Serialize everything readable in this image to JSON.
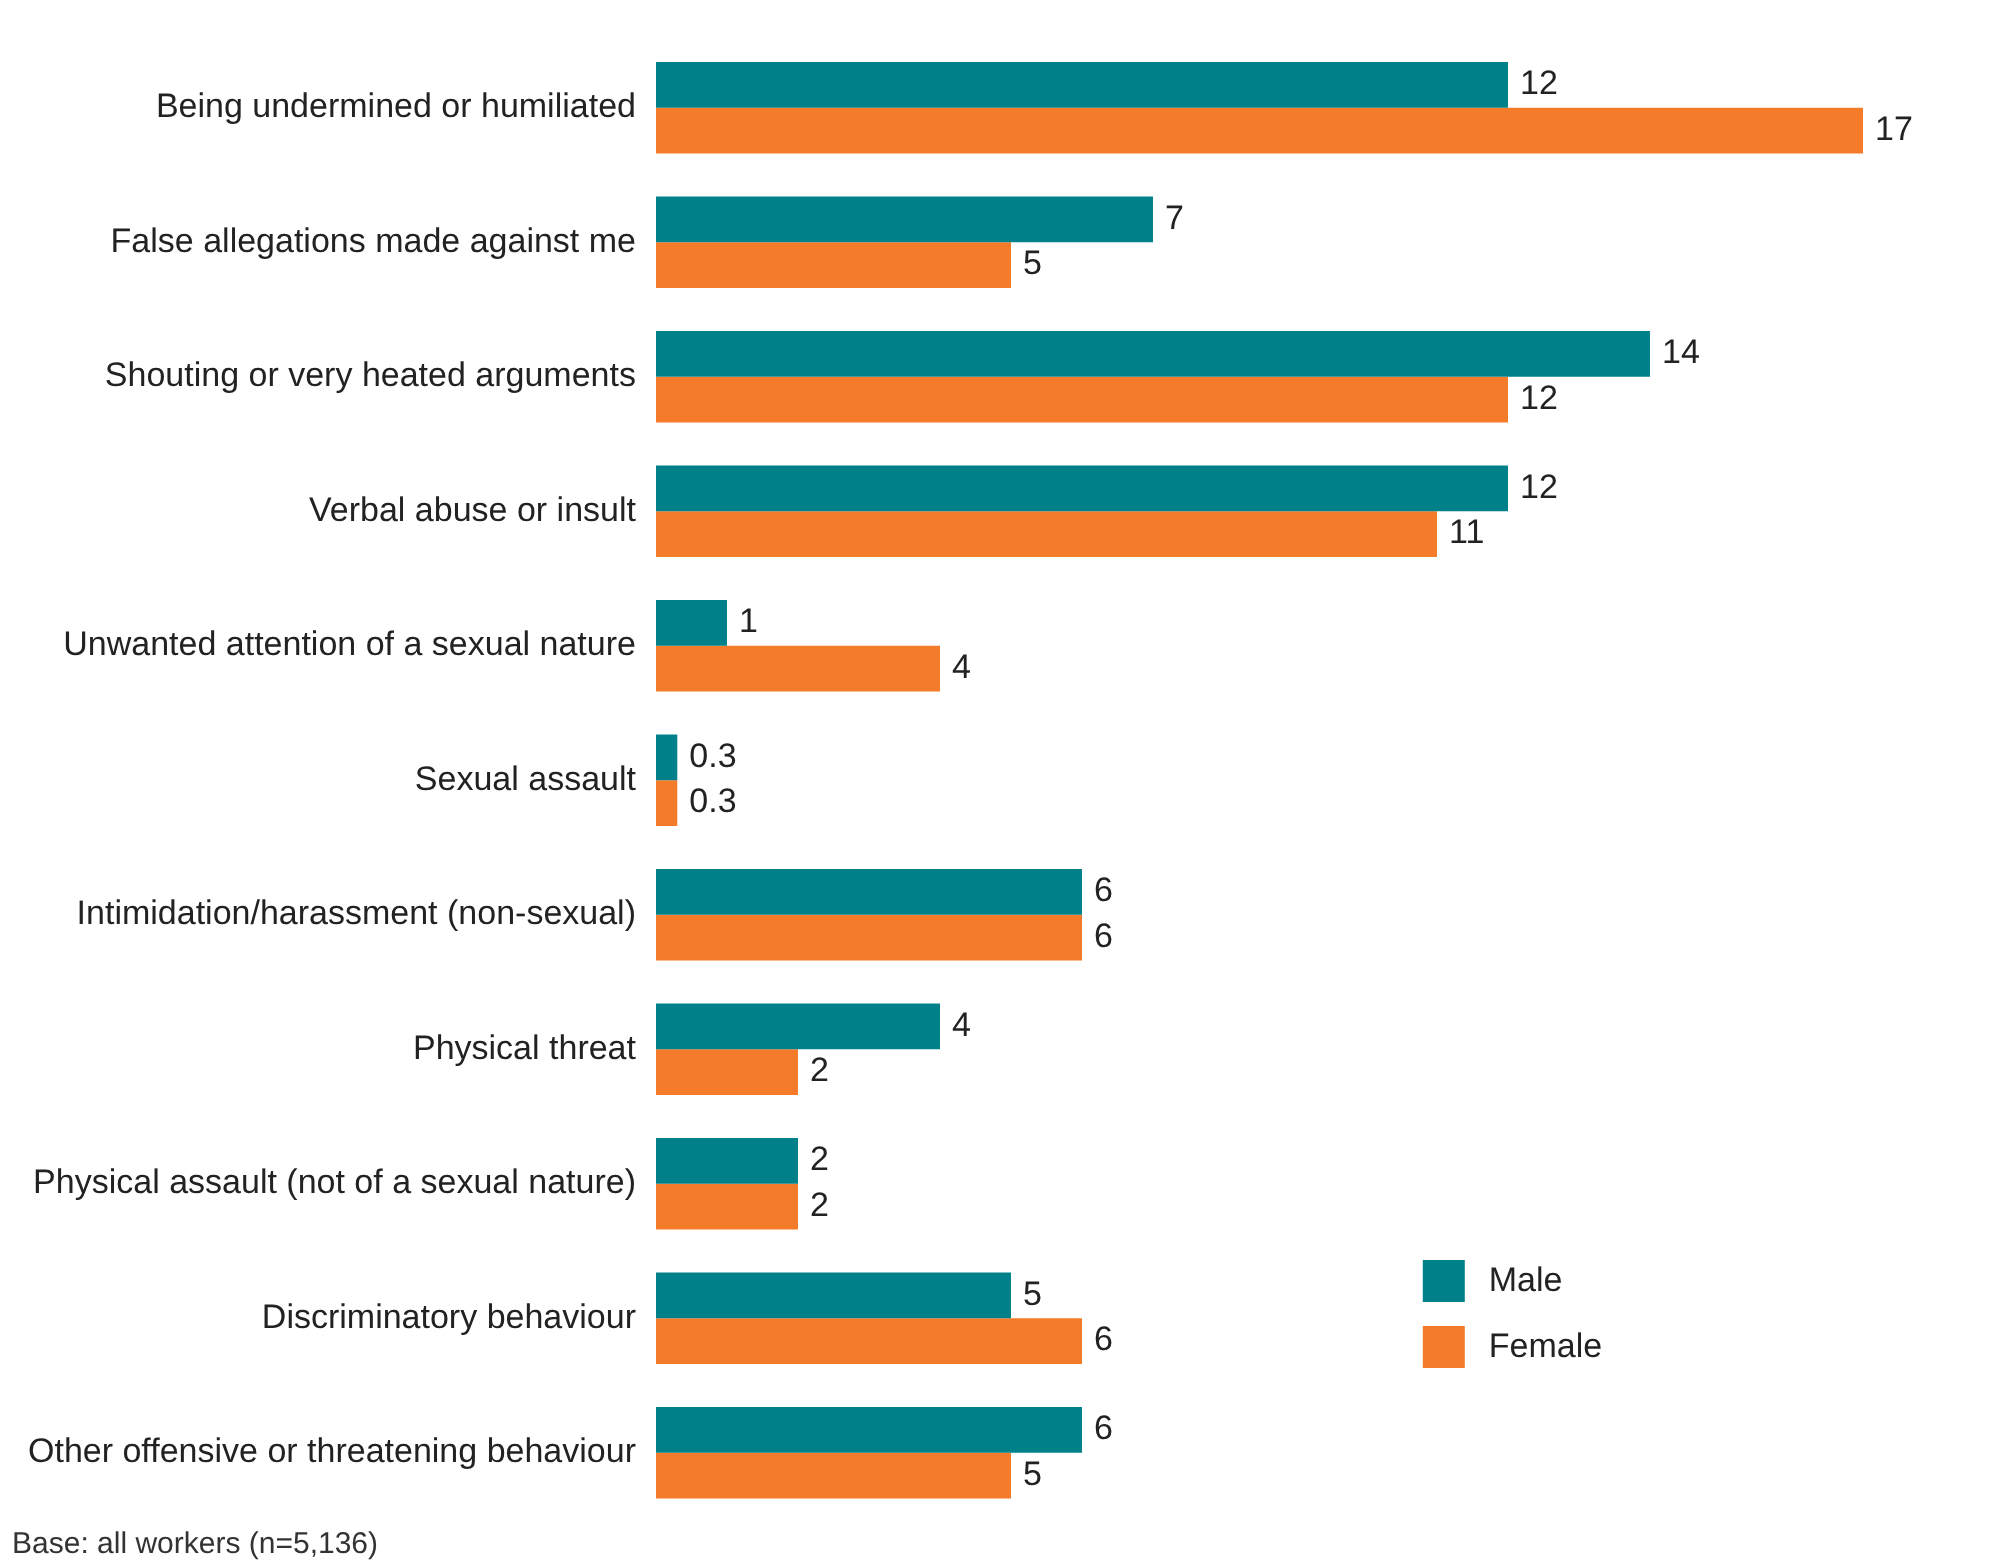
{
  "chart_data": {
    "type": "bar",
    "orientation": "horizontal",
    "categories": [
      "Being undermined or humiliated",
      "False allegations made against me",
      "Shouting or very heated arguments",
      "Verbal abuse or insult",
      "Unwanted attention of a sexual nature",
      "Sexual assault",
      "Intimidation/harassment (non-sexual)",
      "Physical threat",
      "Physical assault (not of a sexual nature)",
      "Discriminatory behaviour",
      "Other offensive or threatening behaviour"
    ],
    "series": [
      {
        "name": "Male",
        "color": "#00818a",
        "values": [
          12,
          7,
          14,
          12,
          1,
          0.3,
          6,
          4,
          2,
          5,
          6
        ]
      },
      {
        "name": "Female",
        "color": "#f47b29",
        "values": [
          17,
          5,
          12,
          11,
          4,
          0.3,
          6,
          2,
          2,
          6,
          5
        ]
      }
    ],
    "data_labels": true,
    "grid": false,
    "legend": "bottom right",
    "tick_labels": "y",
    "annotations": [
      "Base: all workers (n=5,136)"
    ]
  }
}
